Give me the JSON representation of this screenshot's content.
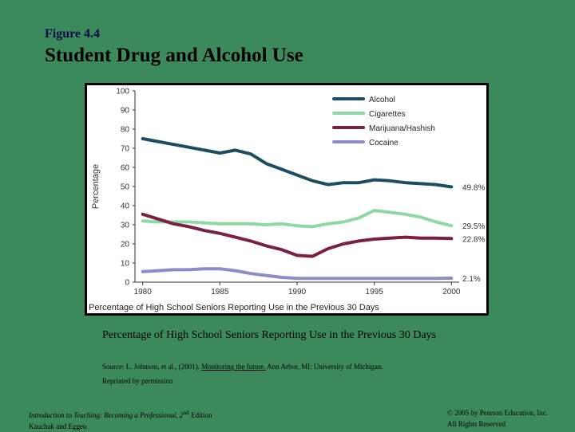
{
  "slide": {
    "figure_label": "Figure 4.4",
    "title": "Student Drug and Alcohol Use",
    "caption": "Percentage of High School Seniors Reporting Use in the Previous 30 Days",
    "source_prefix": "Source: L. Johnson, et al., (2001).  ",
    "source_link": "Monitoring the future.",
    "source_suffix": "  Ann Arbor, MI:  University of Michigan.",
    "reprinted": "Reprinted by permission",
    "footer_left_line1_italic": "Introduction to Teaching: Becoming a Professional, 2",
    "footer_left_line1_sup": "nd",
    "footer_left_line1_rest": " Edition",
    "footer_left_line2": "Kauchak and Eggen",
    "footer_right_line1": "© 2005 by Pearson Education, Inc.",
    "footer_right_line2": "All Rights Reserved"
  },
  "chart_data": {
    "type": "line",
    "title": "",
    "xlabel": "Percentage of High School Seniors Reporting Use in the Previous 30 Days",
    "ylabel": "Percentage",
    "xlim": [
      1979.5,
      2000.5
    ],
    "ylim": [
      0,
      100
    ],
    "x_ticks": [
      "1980",
      "1985",
      "1990",
      "1995",
      "2000"
    ],
    "x_tick_values": [
      1980,
      1985,
      1990,
      1995,
      2000
    ],
    "y_ticks": [
      "0",
      "10",
      "20",
      "30",
      "40",
      "50",
      "60",
      "70",
      "80",
      "90",
      "100"
    ],
    "y_tick_values": [
      0,
      10,
      20,
      30,
      40,
      50,
      60,
      70,
      80,
      90,
      100
    ],
    "x": [
      1980,
      1981,
      1982,
      1983,
      1984,
      1985,
      1986,
      1987,
      1988,
      1989,
      1990,
      1991,
      1992,
      1993,
      1994,
      1995,
      1996,
      1997,
      1998,
      1999,
      2000
    ],
    "series": [
      {
        "name": "Alcohol",
        "color": "#1c4e63",
        "values": [
          75,
          73.5,
          72,
          70.5,
          69,
          67.5,
          69,
          67,
          62,
          59,
          56,
          53,
          51,
          52,
          52,
          53.5,
          53,
          52,
          51.5,
          51,
          49.8
        ],
        "end_label": "49.8%"
      },
      {
        "name": "Cigarettes",
        "color": "#8ed9a3",
        "values": [
          32,
          31.5,
          31.5,
          31.5,
          31,
          30.5,
          30.5,
          30.5,
          30,
          30.5,
          29.5,
          29,
          30.5,
          31.5,
          33.5,
          37.5,
          36.5,
          35.5,
          34,
          31.5,
          29.5
        ],
        "end_label": "29.5%"
      },
      {
        "name": "Marijuana/Hashish",
        "color": "#7b1f45",
        "values": [
          35.5,
          33,
          30.5,
          29,
          27,
          25.5,
          23.5,
          21.5,
          19,
          17,
          14,
          13.5,
          17.5,
          20,
          21.5,
          22.5,
          23,
          23.5,
          23,
          23,
          22.8
        ],
        "end_label": "22.8%"
      },
      {
        "name": "Cocaine",
        "color": "#8d8cc8",
        "values": [
          5.5,
          6,
          6.5,
          6.5,
          7,
          7,
          6,
          4.5,
          3.5,
          2.5,
          2,
          2,
          2,
          2,
          2,
          2,
          2,
          2,
          2,
          2,
          2.1
        ],
        "end_label": "2.1%"
      }
    ],
    "legend_position": "top-right",
    "grid": false
  }
}
